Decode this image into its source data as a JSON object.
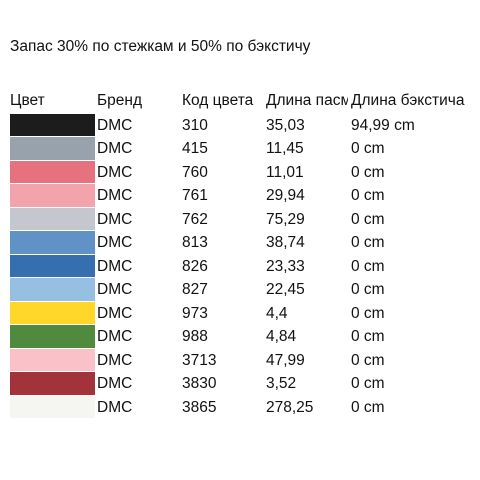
{
  "title": "Запас 30% по стежкам и 50% по бэкстичу",
  "headers": {
    "color": "Цвет",
    "brand": "Бренд",
    "code": "Код цвета",
    "length": "Длина пасмы",
    "backstitch": "Длина бэкстича"
  },
  "rows": [
    {
      "swatch": "#1c1c1c",
      "brand": "DMC",
      "code": "310",
      "length": "35,03",
      "backstitch": "94,99 cm"
    },
    {
      "swatch": "#98a2ad",
      "brand": "DMC",
      "code": "415",
      "length": "11,45",
      "backstitch": "0 cm"
    },
    {
      "swatch": "#e5727e",
      "brand": "DMC",
      "code": "760",
      "length": "11,01",
      "backstitch": "0 cm"
    },
    {
      "swatch": "#f2a4ac",
      "brand": "DMC",
      "code": "761",
      "length": "29,94",
      "backstitch": "0 cm"
    },
    {
      "swatch": "#c5c7d0",
      "brand": "DMC",
      "code": "762",
      "length": "75,29",
      "backstitch": "0 cm"
    },
    {
      "swatch": "#5f93c5",
      "brand": "DMC",
      "code": "813",
      "length": "38,74",
      "backstitch": "0 cm"
    },
    {
      "swatch": "#356fb0",
      "brand": "DMC",
      "code": "826",
      "length": "23,33",
      "backstitch": "0 cm"
    },
    {
      "swatch": "#96c0e2",
      "brand": "DMC",
      "code": "827",
      "length": "22,45",
      "backstitch": "0 cm"
    },
    {
      "swatch": "#ffd72a",
      "brand": "DMC",
      "code": "973",
      "length": "4,4",
      "backstitch": "0 cm"
    },
    {
      "swatch": "#4f8a3e",
      "brand": "DMC",
      "code": "988",
      "length": "4,84",
      "backstitch": "0 cm"
    },
    {
      "swatch": "#fac2c8",
      "brand": "DMC",
      "code": "3713",
      "length": "47,99",
      "backstitch": "0 cm"
    },
    {
      "swatch": "#a3333a",
      "brand": "DMC",
      "code": "3830",
      "length": "3,52",
      "backstitch": "0 cm"
    },
    {
      "swatch": "#f5f6f2",
      "brand": "DMC",
      "code": "3865",
      "length": "278,25",
      "backstitch": "0 cm"
    }
  ]
}
